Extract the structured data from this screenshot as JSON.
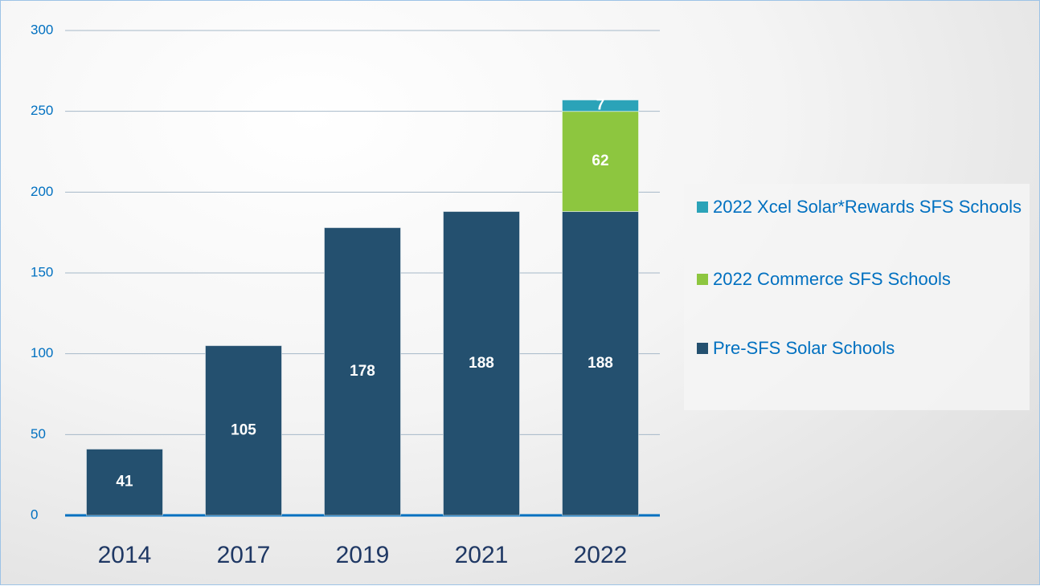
{
  "chart_data": {
    "type": "stacked_bar",
    "categories": [
      "2014",
      "2017",
      "2019",
      "2021",
      "2022"
    ],
    "series": [
      {
        "name": "Pre-SFS Solar Schools",
        "color": "#24506f",
        "values": [
          41,
          105,
          178,
          188,
          188
        ]
      },
      {
        "name": "2022 Commerce SFS Schools",
        "color": "#8dc63f",
        "values": [
          null,
          null,
          null,
          null,
          62
        ]
      },
      {
        "name": "2022 Xcel Solar*Rewards SFS Schools",
        "color": "#2ba3b8",
        "values": [
          null,
          null,
          null,
          null,
          7
        ]
      }
    ],
    "ylim": [
      0,
      300
    ],
    "yticks": [
      0,
      50,
      100,
      150,
      200,
      250,
      300
    ],
    "grid": true,
    "legend": "right"
  }
}
